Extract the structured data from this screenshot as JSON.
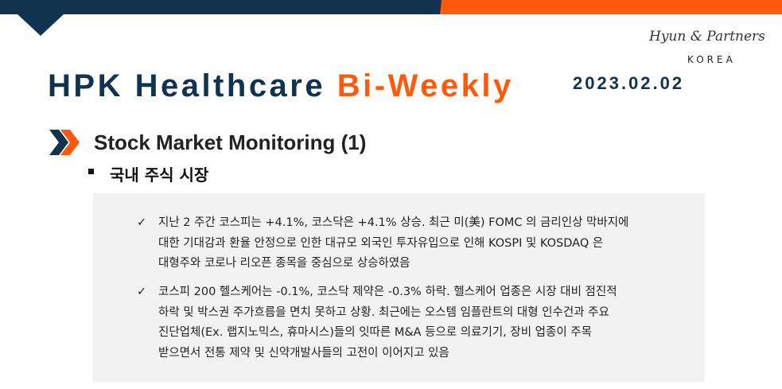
{
  "header": {
    "brand_logo": "Hyun & Partners",
    "brand_sub": "KOREA",
    "title_main": "HPK Healthcare",
    "title_accent": "Bi-Weekly",
    "date": "2023.02.02",
    "colors": {
      "navy": "#10344f",
      "orange": "#fe5a0d"
    }
  },
  "section": {
    "icon": "double-chevron-right-icon",
    "title": "Stock Market Monitoring (1)",
    "subtitle": "국내 주식 시장"
  },
  "items": [
    {
      "lines": [
        "지난 2 주간 코스피는 +4.1%, 코스닥은 +4.1% 상승. 최근 미(美) FOMC 의 금리인상 막바지에",
        "대한 기대감과 환율 안정으로 인한 대규모 외국인 투자유입으로 인해 KOSPI 및 KOSDAQ 은",
        "대형주와 코로나 리오픈 종목을 중심으로 상승하였음"
      ]
    },
    {
      "lines": [
        "코스피 200 헬스케어는 -0.1%, 코스닥 제약은 -0.3% 하락. 헬스케어 업종은 시장 대비 점진적",
        "하락 및 박스권 주가흐름을 면치 못하고 상황. 최근에는 오스템 임플란트의 대형 인수건과 주요",
        "진단업체(Ex. 랩지노믹스, 휴마시스)들의 잇따른 M&A 등으로 의료기기, 장비 업종이 주목",
        "받으면서 전통 제약 및 신약개발사들의 고전이 이어지고 있음"
      ]
    }
  ],
  "check_glyph": "✓"
}
